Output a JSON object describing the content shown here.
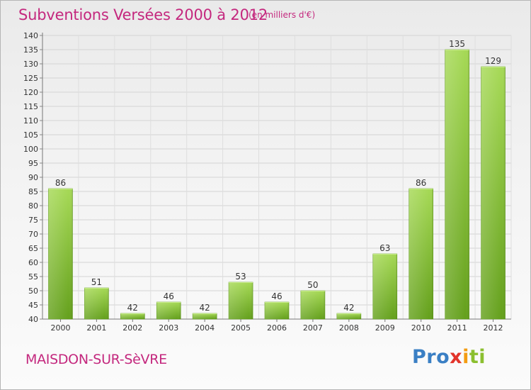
{
  "header": {
    "title": "Subventions Versées 2000 à 2012",
    "subtitle": "(en milliers d'€)"
  },
  "footer": {
    "commune": "MAISDON-SUR-SèVRE",
    "logo": [
      "Pro",
      "x",
      "i",
      "ti"
    ]
  },
  "colors": {
    "bar": "#7ab630",
    "bar_light": "#a4d654",
    "accent": "#c4287e"
  },
  "chart_data": {
    "type": "bar",
    "title": "Subventions Versées 2000 à 2012",
    "subtitle": "(en milliers d'€)",
    "categories": [
      "2000",
      "2001",
      "2002",
      "2003",
      "2004",
      "2005",
      "2006",
      "2007",
      "2008",
      "2009",
      "2010",
      "2011",
      "2012"
    ],
    "values": [
      86,
      51,
      42,
      46,
      42,
      53,
      46,
      50,
      42,
      63,
      86,
      135,
      129
    ],
    "ylim": [
      40,
      140
    ],
    "yticks": [
      40,
      45,
      50,
      55,
      60,
      65,
      70,
      75,
      80,
      85,
      90,
      95,
      100,
      105,
      110,
      115,
      120,
      125,
      130,
      135,
      140
    ],
    "grid": true,
    "legend": "none"
  }
}
